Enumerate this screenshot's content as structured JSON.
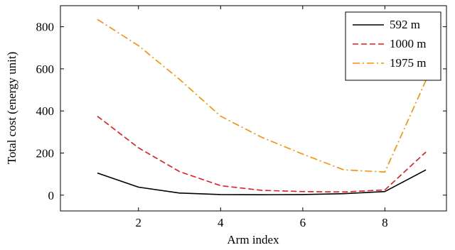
{
  "chart_data": {
    "type": "line",
    "xlabel": "Arm index",
    "ylabel": "Total cost (energy unit)",
    "xlim": [
      0.1,
      9.5
    ],
    "ylim": [
      -75,
      900
    ],
    "xticks": [
      2,
      4,
      6,
      8
    ],
    "yticks": [
      0,
      200,
      400,
      600,
      800
    ],
    "grid": false,
    "legend_position": "top-right",
    "series": [
      {
        "name": "592 m",
        "color": "#000000",
        "style": "solid",
        "x": [
          1,
          2,
          3,
          4,
          5,
          6,
          7,
          8,
          9
        ],
        "y": [
          105,
          38,
          10,
          3,
          2,
          3,
          7,
          17,
          120
        ]
      },
      {
        "name": "1000 m",
        "color": "#e41a1c",
        "style": "dashed",
        "x": [
          1,
          2,
          3,
          4,
          5,
          6,
          7,
          8,
          9
        ],
        "y": [
          375,
          225,
          112,
          45,
          23,
          17,
          15,
          25,
          205
        ]
      },
      {
        "name": "1975 m",
        "color": "#ff8c00",
        "style": "dashdot",
        "x": [
          1,
          2,
          3,
          4,
          5,
          6,
          7,
          8,
          9
        ],
        "y": [
          835,
          710,
          550,
          375,
          275,
          195,
          120,
          110,
          545
        ]
      }
    ]
  }
}
